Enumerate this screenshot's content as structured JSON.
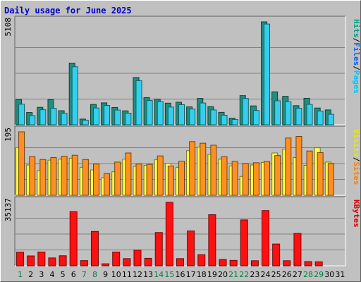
{
  "chart_data": [
    {
      "type": "bar",
      "panel": "hits",
      "max_label": "5108",
      "legend": [
        "Pages",
        "Files",
        "Hits"
      ],
      "legend_seps": [
        "/",
        "/"
      ],
      "legend_colors": [
        "#00c8ff",
        "#0060ff",
        "#00a088"
      ],
      "categories": [
        "1",
        "2",
        "3",
        "4",
        "5",
        "6",
        "7",
        "8",
        "9",
        "10",
        "11",
        "12",
        "13",
        "14",
        "15",
        "16",
        "17",
        "18",
        "19",
        "20",
        "21",
        "22",
        "23",
        "24",
        "25",
        "26",
        "27",
        "28",
        "29",
        "30",
        "31"
      ],
      "series": [
        {
          "name": "Hits",
          "color": "#1f8f7f",
          "values": [
            1255,
            611,
            866,
            1243,
            698,
            3061,
            283,
            1012,
            1088,
            858,
            692,
            2347,
            1349,
            1277,
            1074,
            1120,
            888,
            1308,
            902,
            617,
            329,
            1447,
            938,
            5108,
            1637,
            1411,
            950,
            1314,
            832,
            737,
            null
          ]
        },
        {
          "name": "Files",
          "color": "#33d0ee",
          "values": [
            1021,
            454,
            746,
            821,
            565,
            2878,
            231,
            833,
            963,
            730,
            575,
            2188,
            1204,
            1146,
            879,
            997,
            781,
            1080,
            738,
            473,
            264,
            1305,
            709,
            5000,
            1191,
            1143,
            823,
            1014,
            678,
            522,
            null
          ]
        }
      ]
    },
    {
      "type": "bar",
      "panel": "visits",
      "max_label": "195",
      "legend": [
        "Sites",
        "Visits"
      ],
      "legend_seps": [
        "/"
      ],
      "legend_colors": [
        "#ff8000",
        "#e8e800"
      ],
      "categories": [
        "1",
        "2",
        "3",
        "4",
        "5",
        "6",
        "7",
        "8",
        "9",
        "10",
        "11",
        "12",
        "13",
        "14",
        "15",
        "16",
        "17",
        "18",
        "19",
        "20",
        "21",
        "22",
        "23",
        "24",
        "25",
        "26",
        "27",
        "28",
        "29",
        "30",
        "31"
      ],
      "series": [
        {
          "name": "Visits",
          "color": "#ffff44",
          "values": [
            147,
            93,
            76,
            108,
            111,
            114,
            86,
            78,
            54,
            72,
            111,
            89,
            92,
            110,
            98,
            86,
            137,
            148,
            126,
            111,
            90,
            58,
            93,
            101,
            130,
            142,
            116,
            92,
            146,
            102,
            null
          ]
        },
        {
          "name": "Sites",
          "color": "#ff9020",
          "values": [
            195,
            119,
            110,
            116,
            120,
            123,
            110,
            96,
            67,
            102,
            130,
            96,
            95,
            121,
            90,
            105,
            165,
            160,
            154,
            119,
            104,
            98,
            100,
            104,
            122,
            176,
            181,
            136,
            131,
            98,
            null
          ]
        }
      ]
    },
    {
      "type": "bar",
      "panel": "kbytes",
      "max_label": "35137",
      "legend": [
        "KBytes"
      ],
      "legend_seps": [],
      "legend_colors": [
        "#e00000"
      ],
      "categories": [
        "1",
        "2",
        "3",
        "4",
        "5",
        "6",
        "7",
        "8",
        "9",
        "10",
        "11",
        "12",
        "13",
        "14",
        "15",
        "16",
        "17",
        "18",
        "19",
        "20",
        "21",
        "22",
        "23",
        "24",
        "25",
        "26",
        "27",
        "28",
        "29",
        "30",
        "31"
      ],
      "series": [
        {
          "name": "KBytes",
          "color": "#ff1010",
          "values": [
            7556,
            5459,
            7628,
            4355,
            5559,
            30016,
            2868,
            19010,
            1114,
            7628,
            3967,
            8659,
            4145,
            18441,
            35137,
            3967,
            19289,
            6162,
            28289,
            3501,
            2978,
            25412,
            2799,
            30566,
            12064,
            2799,
            17920,
            2332,
            2215,
            null,
            null
          ]
        }
      ]
    }
  ],
  "title": "Daily usage for June 2025",
  "weekend_days": [
    1,
    7,
    8,
    14,
    15,
    21,
    22,
    28,
    29
  ],
  "weekend_color": "#008040",
  "weekday_color": "#000000"
}
